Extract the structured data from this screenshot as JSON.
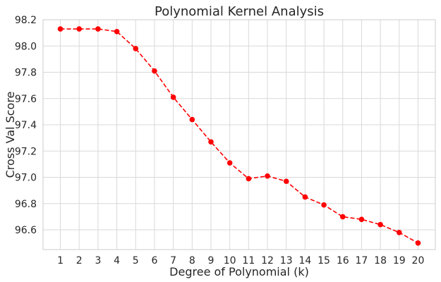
{
  "chart_data": {
    "type": "line",
    "title": "Polynomial Kernel Analysis",
    "xlabel": "Degree of Polynomial (k)",
    "ylabel": "Cross Val Score",
    "x": [
      1,
      2,
      3,
      4,
      5,
      6,
      7,
      8,
      9,
      10,
      11,
      12,
      13,
      14,
      15,
      16,
      17,
      18,
      19,
      20
    ],
    "x_ticks": [
      "1",
      "2",
      "3",
      "4",
      "5",
      "6",
      "7",
      "8",
      "9",
      "10",
      "11",
      "12",
      "13",
      "14",
      "15",
      "16",
      "17",
      "18",
      "19",
      "20"
    ],
    "y_ticks": [
      "96.6",
      "96.8",
      "97.0",
      "97.2",
      "97.4",
      "97.6",
      "97.8",
      "98.0",
      "98.2"
    ],
    "ylim": [
      96.45,
      98.2
    ],
    "grid": true,
    "series": [
      {
        "color": "#ff0000",
        "line_style": "dashed",
        "marker": "circle",
        "values": [
          98.13,
          98.13,
          98.13,
          98.11,
          97.98,
          97.81,
          97.61,
          97.44,
          97.27,
          97.11,
          96.99,
          97.01,
          96.97,
          96.85,
          96.79,
          96.7,
          96.68,
          96.64,
          96.58,
          96.5
        ]
      }
    ]
  }
}
